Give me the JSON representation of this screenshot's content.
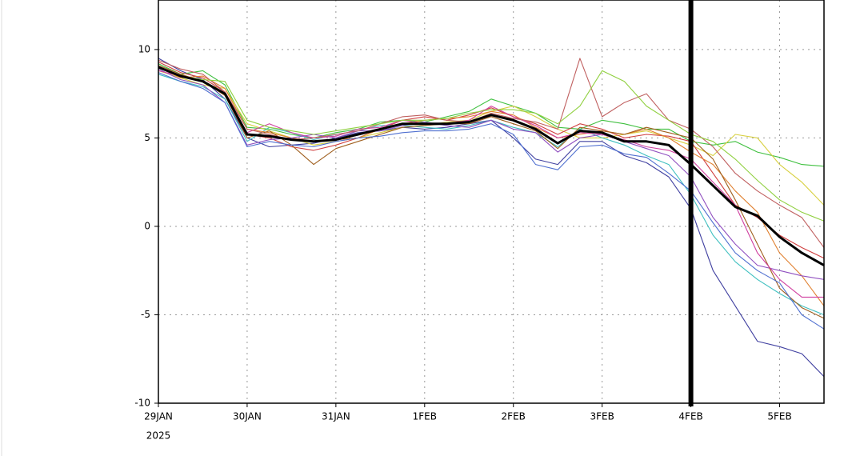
{
  "chart_data": {
    "type": "line",
    "x": [
      0,
      0.25,
      0.5,
      0.75,
      1,
      1.25,
      1.5,
      1.75,
      2,
      2.25,
      2.5,
      2.75,
      3,
      3.25,
      3.5,
      3.75,
      4,
      4.25,
      4.5,
      4.75,
      5,
      5.25,
      5.5,
      5.75,
      6,
      6.25,
      6.5,
      6.75,
      7,
      7.25,
      7.5
    ],
    "xlim": [
      0,
      7.5
    ],
    "xticks": [
      {
        "value": 0,
        "label": "29JAN"
      },
      {
        "value": 1,
        "label": "30JAN"
      },
      {
        "value": 2,
        "label": "31JAN"
      },
      {
        "value": 3,
        "label": "1FEB"
      },
      {
        "value": 4,
        "label": "2FEB"
      },
      {
        "value": 5,
        "label": "3FEB"
      },
      {
        "value": 6,
        "label": "4FEB"
      },
      {
        "value": 7,
        "label": "5FEB"
      }
    ],
    "x_year_label": "2025",
    "ylim": [
      -10,
      12.8
    ],
    "yticks": [
      -10,
      -5,
      0,
      5,
      10
    ],
    "grid": true,
    "vline_x": 6,
    "series": [
      {
        "color": "#4040a0",
        "values": [
          9.5,
          8.8,
          8.3,
          7.2,
          5.0,
          4.5,
          4.6,
          4.7,
          5.0,
          5.3,
          5.4,
          5.6,
          5.5,
          5.6,
          5.8,
          6.0,
          5.0,
          3.8,
          3.5,
          4.8,
          4.8,
          4.0,
          3.6,
          2.8,
          1.0,
          -2.5,
          -4.5,
          -6.5,
          -6.8,
          -7.2,
          -8.5
        ]
      },
      {
        "color": "#40c040",
        "values": [
          9.2,
          8.6,
          8.8,
          8.0,
          5.6,
          5.5,
          5.2,
          5.0,
          5.3,
          5.5,
          5.9,
          6.0,
          5.9,
          6.2,
          6.5,
          7.2,
          6.8,
          6.4,
          5.6,
          5.5,
          6.0,
          5.8,
          5.5,
          5.5,
          4.8,
          4.6,
          4.8,
          4.2,
          3.9,
          3.5,
          3.4
        ]
      },
      {
        "color": "#d8d040",
        "values": [
          8.8,
          8.4,
          8.0,
          7.8,
          5.8,
          5.4,
          5.0,
          4.6,
          4.8,
          5.0,
          5.3,
          5.6,
          5.7,
          5.9,
          6.0,
          6.5,
          6.8,
          6.2,
          5.5,
          5.0,
          5.0,
          5.2,
          5.4,
          5.0,
          4.6,
          4.0,
          5.2,
          5.0,
          3.5,
          2.5,
          1.2
        ]
      },
      {
        "color": "#d04040",
        "values": [
          9.3,
          8.7,
          8.4,
          7.6,
          5.2,
          5.0,
          4.5,
          4.3,
          4.6,
          5.0,
          5.5,
          6.0,
          6.2,
          6.0,
          6.3,
          6.7,
          6.2,
          5.8,
          5.2,
          5.8,
          5.5,
          5.0,
          5.2,
          5.1,
          4.8,
          3.0,
          1.2,
          0.5,
          -0.5,
          -1.2,
          -1.8
        ]
      },
      {
        "color": "#40c0c0",
        "values": [
          8.6,
          8.2,
          7.9,
          7.2,
          4.8,
          5.6,
          5.3,
          4.9,
          5.2,
          5.4,
          5.7,
          5.7,
          5.6,
          5.5,
          5.7,
          6.0,
          5.6,
          5.3,
          4.5,
          5.5,
          5.0,
          4.6,
          4.0,
          3.5,
          1.8,
          -0.5,
          -2.0,
          -3.0,
          -3.8,
          -4.5,
          -5.0
        ]
      },
      {
        "color": "#e08030",
        "values": [
          9.0,
          8.4,
          8.5,
          7.8,
          5.5,
          5.3,
          5.0,
          4.8,
          4.9,
          5.0,
          5.5,
          5.8,
          6.0,
          6.1,
          6.2,
          6.5,
          6.3,
          5.6,
          5.0,
          5.2,
          5.4,
          5.2,
          5.5,
          5.0,
          4.2,
          3.5,
          2.0,
          0.8,
          -1.5,
          -2.8,
          -4.5
        ]
      },
      {
        "color": "#9050c0",
        "values": [
          8.9,
          8.3,
          8.0,
          7.0,
          4.6,
          4.9,
          5.0,
          5.2,
          5.0,
          5.4,
          5.4,
          5.7,
          5.9,
          5.7,
          5.6,
          6.0,
          5.5,
          5.3,
          4.2,
          5.0,
          5.2,
          4.8,
          4.4,
          4.0,
          2.8,
          0.5,
          -1.0,
          -2.2,
          -2.5,
          -2.8,
          -3.0
        ]
      },
      {
        "color": "#a06020",
        "values": [
          9.1,
          8.6,
          8.2,
          7.4,
          5.0,
          5.4,
          4.6,
          3.5,
          4.4,
          4.8,
          5.2,
          5.6,
          5.7,
          5.8,
          5.8,
          6.2,
          5.8,
          5.4,
          4.4,
          5.6,
          5.4,
          5.2,
          5.6,
          5.3,
          5.0,
          3.8,
          1.5,
          -1.0,
          -3.5,
          -4.6,
          -5.2
        ]
      },
      {
        "color": "#d040a0",
        "values": [
          8.8,
          8.5,
          8.2,
          7.5,
          5.3,
          5.8,
          5.3,
          5.0,
          5.1,
          5.5,
          5.6,
          6.0,
          5.8,
          5.8,
          6.0,
          6.8,
          6.2,
          5.7,
          5.0,
          5.3,
          5.2,
          4.9,
          4.5,
          4.3,
          3.8,
          2.5,
          1.2,
          -1.5,
          -3.0,
          -4.0,
          -4.0
        ]
      },
      {
        "color": "#c06060",
        "values": [
          9.4,
          8.9,
          8.6,
          7.6,
          5.5,
          5.2,
          4.9,
          5.0,
          5.2,
          5.4,
          5.8,
          6.2,
          6.3,
          6.0,
          5.9,
          6.4,
          6.1,
          5.9,
          5.5,
          9.5,
          6.2,
          7.0,
          7.5,
          6.0,
          5.5,
          4.5,
          3.0,
          2.0,
          1.2,
          0.5,
          -1.2
        ]
      },
      {
        "color": "#90d040",
        "values": [
          9.0,
          8.5,
          8.3,
          8.2,
          6.0,
          5.6,
          5.4,
          5.2,
          5.4,
          5.6,
          5.8,
          6.0,
          6.0,
          6.1,
          6.4,
          6.6,
          6.6,
          6.4,
          5.8,
          6.8,
          8.8,
          8.2,
          6.8,
          6.0,
          5.2,
          4.8,
          3.8,
          2.6,
          1.5,
          0.8,
          0.3
        ]
      },
      {
        "color": "#5070d0",
        "values": [
          8.7,
          8.2,
          7.8,
          7.0,
          4.5,
          4.8,
          4.6,
          4.5,
          4.8,
          5.0,
          5.1,
          5.3,
          5.4,
          5.4,
          5.5,
          5.8,
          5.2,
          3.5,
          3.2,
          4.5,
          4.6,
          4.1,
          3.9,
          3.0,
          2.0,
          0.2,
          -1.5,
          -2.5,
          -3.2,
          -5.0,
          -5.8
        ]
      },
      {
        "color": "#000000",
        "values": [
          9.0,
          8.5,
          8.2,
          7.5,
          5.2,
          5.1,
          4.9,
          4.8,
          4.9,
          5.2,
          5.5,
          5.8,
          5.8,
          5.8,
          5.9,
          6.3,
          6.0,
          5.5,
          4.7,
          5.4,
          5.3,
          4.8,
          4.8,
          4.6,
          3.5,
          2.3,
          1.1,
          0.6,
          -0.6,
          -1.5,
          -2.2
        ]
      }
    ]
  }
}
